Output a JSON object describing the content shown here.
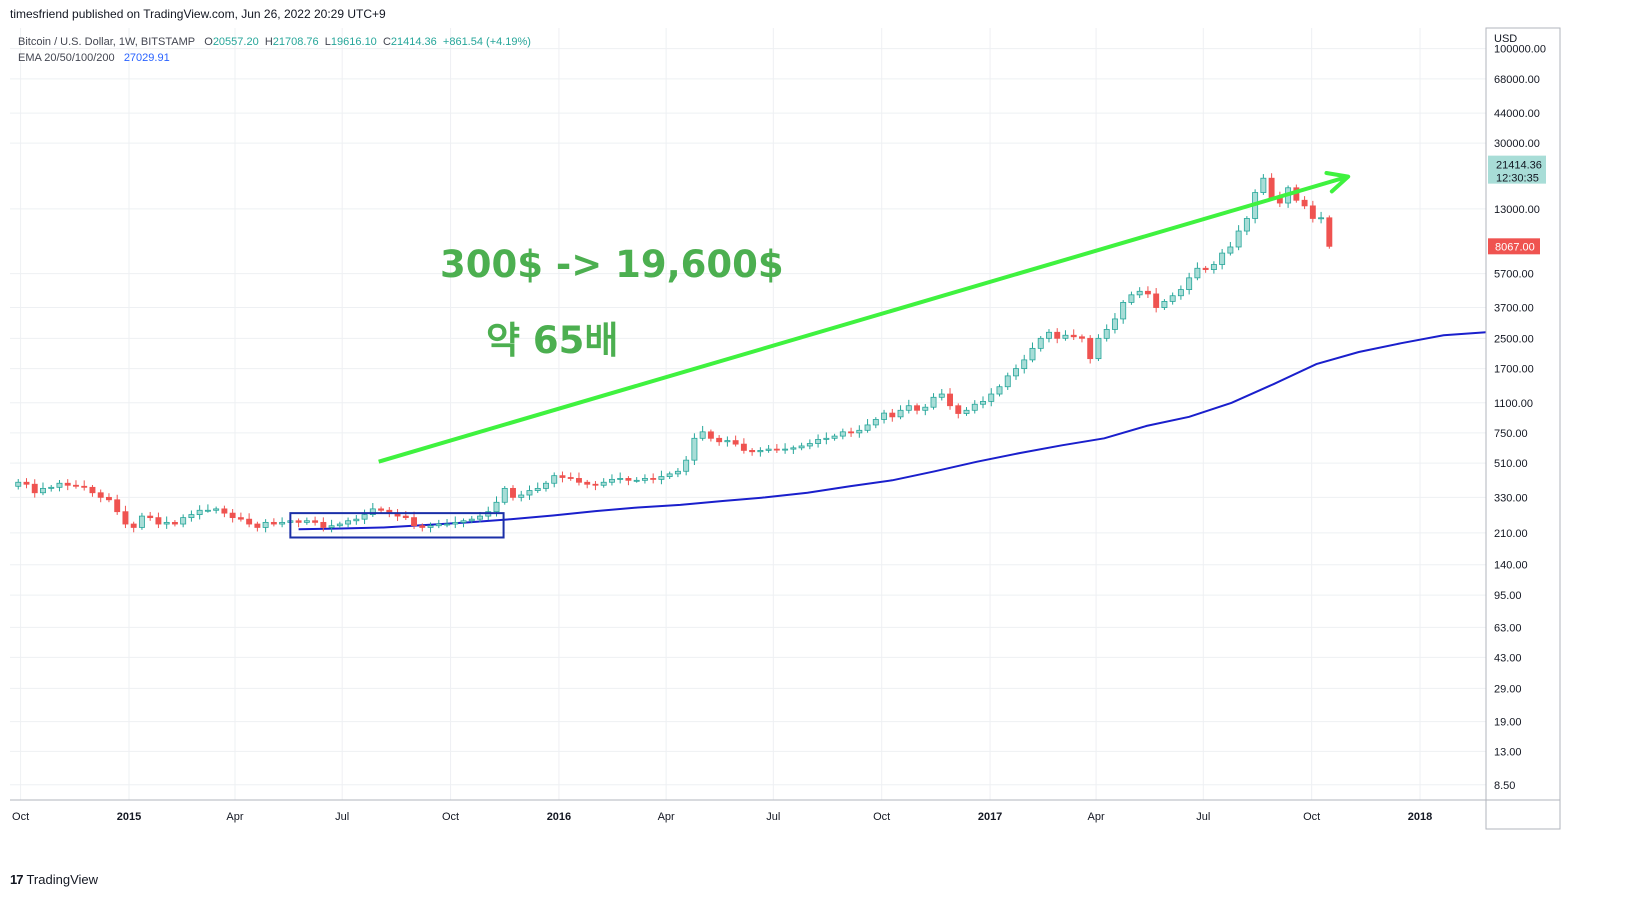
{
  "publish_line": "timesfriend published on TradingView.com, Jun 26, 2022 20:29 UTC+9",
  "legend": {
    "symbol": "Bitcoin / U.S. Dollar, 1W, BITSTAMP",
    "open_label": "O",
    "open": "20557.20",
    "high_label": "H",
    "high": "21708.76",
    "low_label": "L",
    "low": "19616.10",
    "close_label": "C",
    "close": "21414.36",
    "change": "+861.54 (+4.19%)",
    "ema_label": "EMA 20/50/100/200",
    "ema_value": "27029.91"
  },
  "footer": {
    "logo_icon": "tradingview-logo-icon",
    "brand": "TradingView"
  },
  "colors": {
    "up": "#26a69a",
    "down": "#ef5350",
    "ema": "#1a1fcc",
    "arrow": "#3ff23f",
    "annotation": "#4caf50",
    "box": "#1a2fa8",
    "grid": "#eef0f3"
  },
  "chart_data": {
    "type": "candlestick",
    "currency": "USD",
    "scale": "log",
    "ylim": [
      7,
      130000
    ],
    "xlim": [
      "2014-09-22",
      "2018-02-26"
    ],
    "grid": true,
    "x_ticks": [
      {
        "date": "2014-10-01",
        "label": "Oct"
      },
      {
        "date": "2015-01-01",
        "label": "2015"
      },
      {
        "date": "2015-04-01",
        "label": "Apr"
      },
      {
        "date": "2015-07-01",
        "label": "Jul"
      },
      {
        "date": "2015-10-01",
        "label": "Oct"
      },
      {
        "date": "2016-01-01",
        "label": "2016"
      },
      {
        "date": "2016-04-01",
        "label": "Apr"
      },
      {
        "date": "2016-07-01",
        "label": "Jul"
      },
      {
        "date": "2016-10-01",
        "label": "Oct"
      },
      {
        "date": "2017-01-01",
        "label": "2017"
      },
      {
        "date": "2017-04-01",
        "label": "Apr"
      },
      {
        "date": "2017-07-01",
        "label": "Jul"
      },
      {
        "date": "2017-10-01",
        "label": "Oct"
      },
      {
        "date": "2018-01-01",
        "label": "2018"
      }
    ],
    "y_ticks": [
      {
        "value": 100000,
        "label": "100000.00"
      },
      {
        "value": 68000,
        "label": "68000.00"
      },
      {
        "value": 44000,
        "label": "44000.00"
      },
      {
        "value": 30000,
        "label": "30000.00"
      },
      {
        "value": 13000,
        "label": "13000.00"
      },
      {
        "value": 5700,
        "label": "5700.00"
      },
      {
        "value": 3700,
        "label": "3700.00"
      },
      {
        "value": 2500,
        "label": "2500.00"
      },
      {
        "value": 1700,
        "label": "1700.00"
      },
      {
        "value": 1100,
        "label": "1100.00"
      },
      {
        "value": 750,
        "label": "750.00"
      },
      {
        "value": 510,
        "label": "510.00"
      },
      {
        "value": 330,
        "label": "330.00"
      },
      {
        "value": 210,
        "label": "210.00"
      },
      {
        "value": 140,
        "label": "140.00"
      },
      {
        "value": 95,
        "label": "95.00"
      },
      {
        "value": 63,
        "label": "63.00"
      },
      {
        "value": 43,
        "label": "43.00"
      },
      {
        "value": 29,
        "label": "29.00"
      },
      {
        "value": 19,
        "label": "19.00"
      },
      {
        "value": 13,
        "label": "13.00"
      },
      {
        "value": 8.5,
        "label": "8.50"
      }
    ],
    "last_price_label": {
      "value": 21414.36,
      "text": "21414.36",
      "countdown": "12:30:35"
    },
    "current_bar_label": {
      "value": 8067,
      "text": "8067.00"
    },
    "closes": [
      380,
      400,
      390,
      350,
      370,
      375,
      395,
      385,
      380,
      375,
      350,
      330,
      320,
      275,
      235,
      225,
      260,
      255,
      235,
      240,
      235,
      255,
      265,
      280,
      280,
      285,
      270,
      255,
      250,
      235,
      225,
      240,
      235,
      240,
      245,
      240,
      245,
      240,
      225,
      230,
      235,
      245,
      250,
      265,
      285,
      280,
      270,
      260,
      255,
      230,
      225,
      230,
      235,
      235,
      240,
      245,
      250,
      260,
      275,
      310,
      370,
      330,
      340,
      360,
      370,
      395,
      435,
      425,
      420,
      400,
      390,
      385,
      400,
      415,
      420,
      410,
      410,
      420,
      415,
      430,
      445,
      460,
      530,
      700,
      760,
      700,
      670,
      680,
      650,
      600,
      590,
      600,
      610,
      605,
      610,
      620,
      635,
      655,
      690,
      700,
      720,
      760,
      750,
      775,
      830,
      890,
      965,
      920,
      1000,
      1060,
      1000,
      1040,
      1180,
      1230,
      1060,
      960,
      1000,
      1080,
      1120,
      1230,
      1350,
      1550,
      1700,
      1900,
      2200,
      2500,
      2700,
      2500,
      2600,
      2550,
      2500,
      1930,
      2500,
      2800,
      3200,
      3950,
      4350,
      4550,
      4400,
      3700,
      4000,
      4300,
      4650,
      5400,
      6100,
      6000,
      6400,
      7400,
      8000,
      9800,
      11500,
      16000,
      19200,
      15000,
      14000,
      17000,
      14500,
      13500,
      11500,
      11600,
      8067
    ],
    "ema_200": [
      220,
      222,
      225,
      232,
      240,
      250,
      262,
      277,
      290,
      300,
      315,
      330,
      350,
      380,
      410,
      460,
      520,
      580,
      640,
      700,
      820,
      920,
      1100,
      1400,
      1800,
      2100,
      2350,
      2600,
      2700
    ],
    "annotations": {
      "arrow": {
        "from": {
          "date": "2015-08-01",
          "price": 520
        },
        "to": {
          "date": "2017-11-01",
          "price": 19600
        }
      },
      "box": {
        "from": {
          "date": "2015-05-18",
          "price": 270
        },
        "to": {
          "date": "2015-11-15",
          "price": 198
        }
      },
      "text_1": "300$ -> 19,600$",
      "text_2": "약 65배"
    }
  }
}
